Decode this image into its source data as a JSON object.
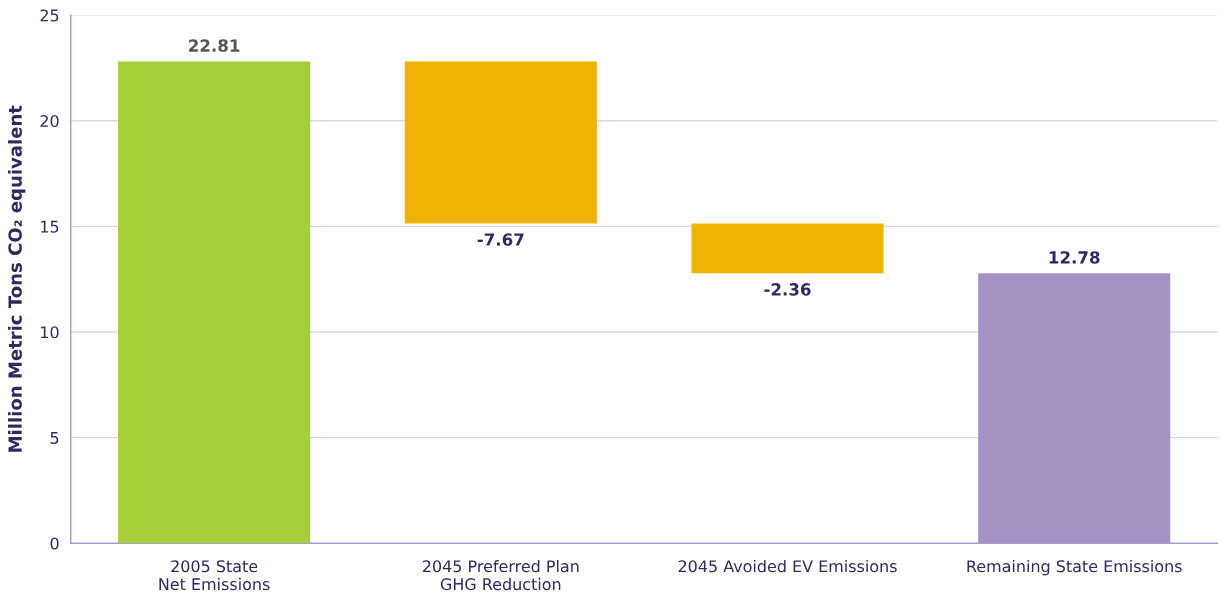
{
  "chart_data": {
    "type": "bar",
    "ylabel": "Million Metric Tons CO₂ equivalent",
    "categories": [
      "2005 State\nNet Emissions",
      "2045 Preferred Plan\nGHG Reduction",
      "2045 Avoided EV Emissions",
      "Remaining State Emissions"
    ],
    "values": [
      22.81,
      -7.67,
      -2.36,
      12.78
    ],
    "base": [
      0,
      22.81,
      15.14,
      0
    ],
    "colors": [
      "#a6ce39",
      "#eeb305",
      "#eeb305",
      "#a593c6"
    ],
    "ylim": [
      0,
      25
    ],
    "yticks": [
      0,
      5,
      10,
      15,
      20,
      25
    ],
    "grid": "y",
    "data_labels": true,
    "legend": false
  }
}
